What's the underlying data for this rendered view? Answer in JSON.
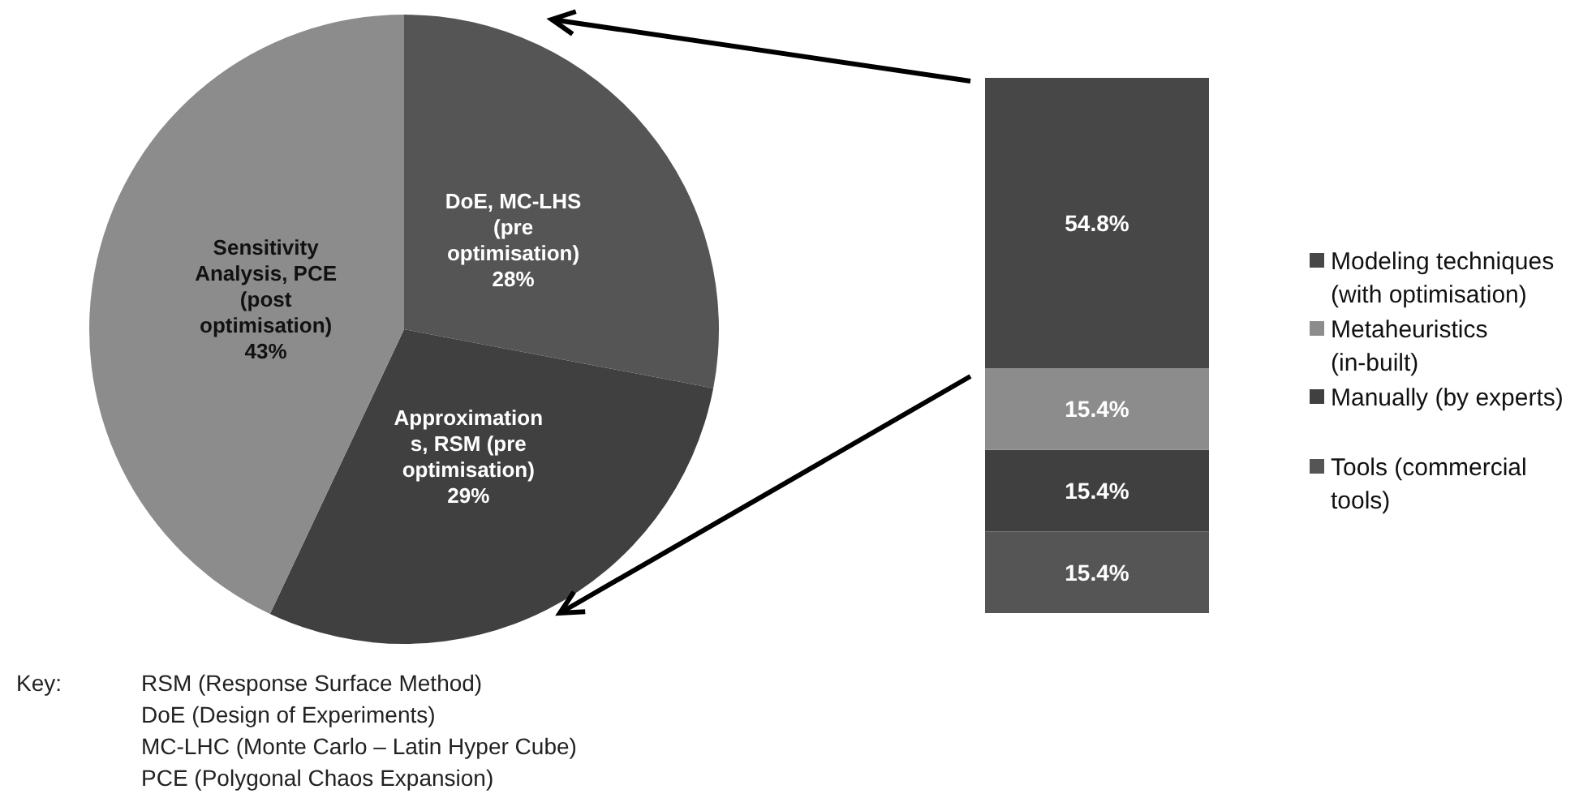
{
  "chart_data": [
    {
      "type": "pie",
      "categories": [
        "DoE, MC-LHS (pre optimisation)",
        "Approximations, RSM (pre optimisation)",
        "Sensitivity Analysis, PCE (post optimisation)"
      ],
      "values": [
        28,
        29,
        43
      ],
      "colors": [
        "#555555",
        "#404040",
        "#8c8c8c"
      ],
      "value_labels": [
        "28%",
        "29%",
        "43%"
      ],
      "annotations": [
        "Key:",
        "RSM (Response Surface Method)",
        "DoE (Design of Experiments)",
        "MC-LHC (Monte Carlo – Latin Hyper Cube)",
        "PCE (Polygonal Chaos Expansion)"
      ]
    },
    {
      "type": "bar",
      "stacked": true,
      "categories": [
        null
      ],
      "legend": "right",
      "series": [
        {
          "name": "Tools (commercial tools)",
          "color": "#555555",
          "values": [
            15.4
          ],
          "value_labels": [
            "15.4%"
          ]
        },
        {
          "name": "Manually (by experts)",
          "color": "#404040",
          "values": [
            15.4
          ],
          "value_labels": [
            "15.4%"
          ]
        },
        {
          "name": "Metaheuristics (in-built)",
          "color": "#8c8c8c",
          "values": [
            15.4
          ],
          "value_labels": [
            "15.4%"
          ]
        },
        {
          "name": "Modeling techniques (with optimisation)",
          "color": "#474747",
          "values": [
            54.8
          ],
          "value_labels": [
            "54.8%"
          ]
        }
      ]
    }
  ]
}
